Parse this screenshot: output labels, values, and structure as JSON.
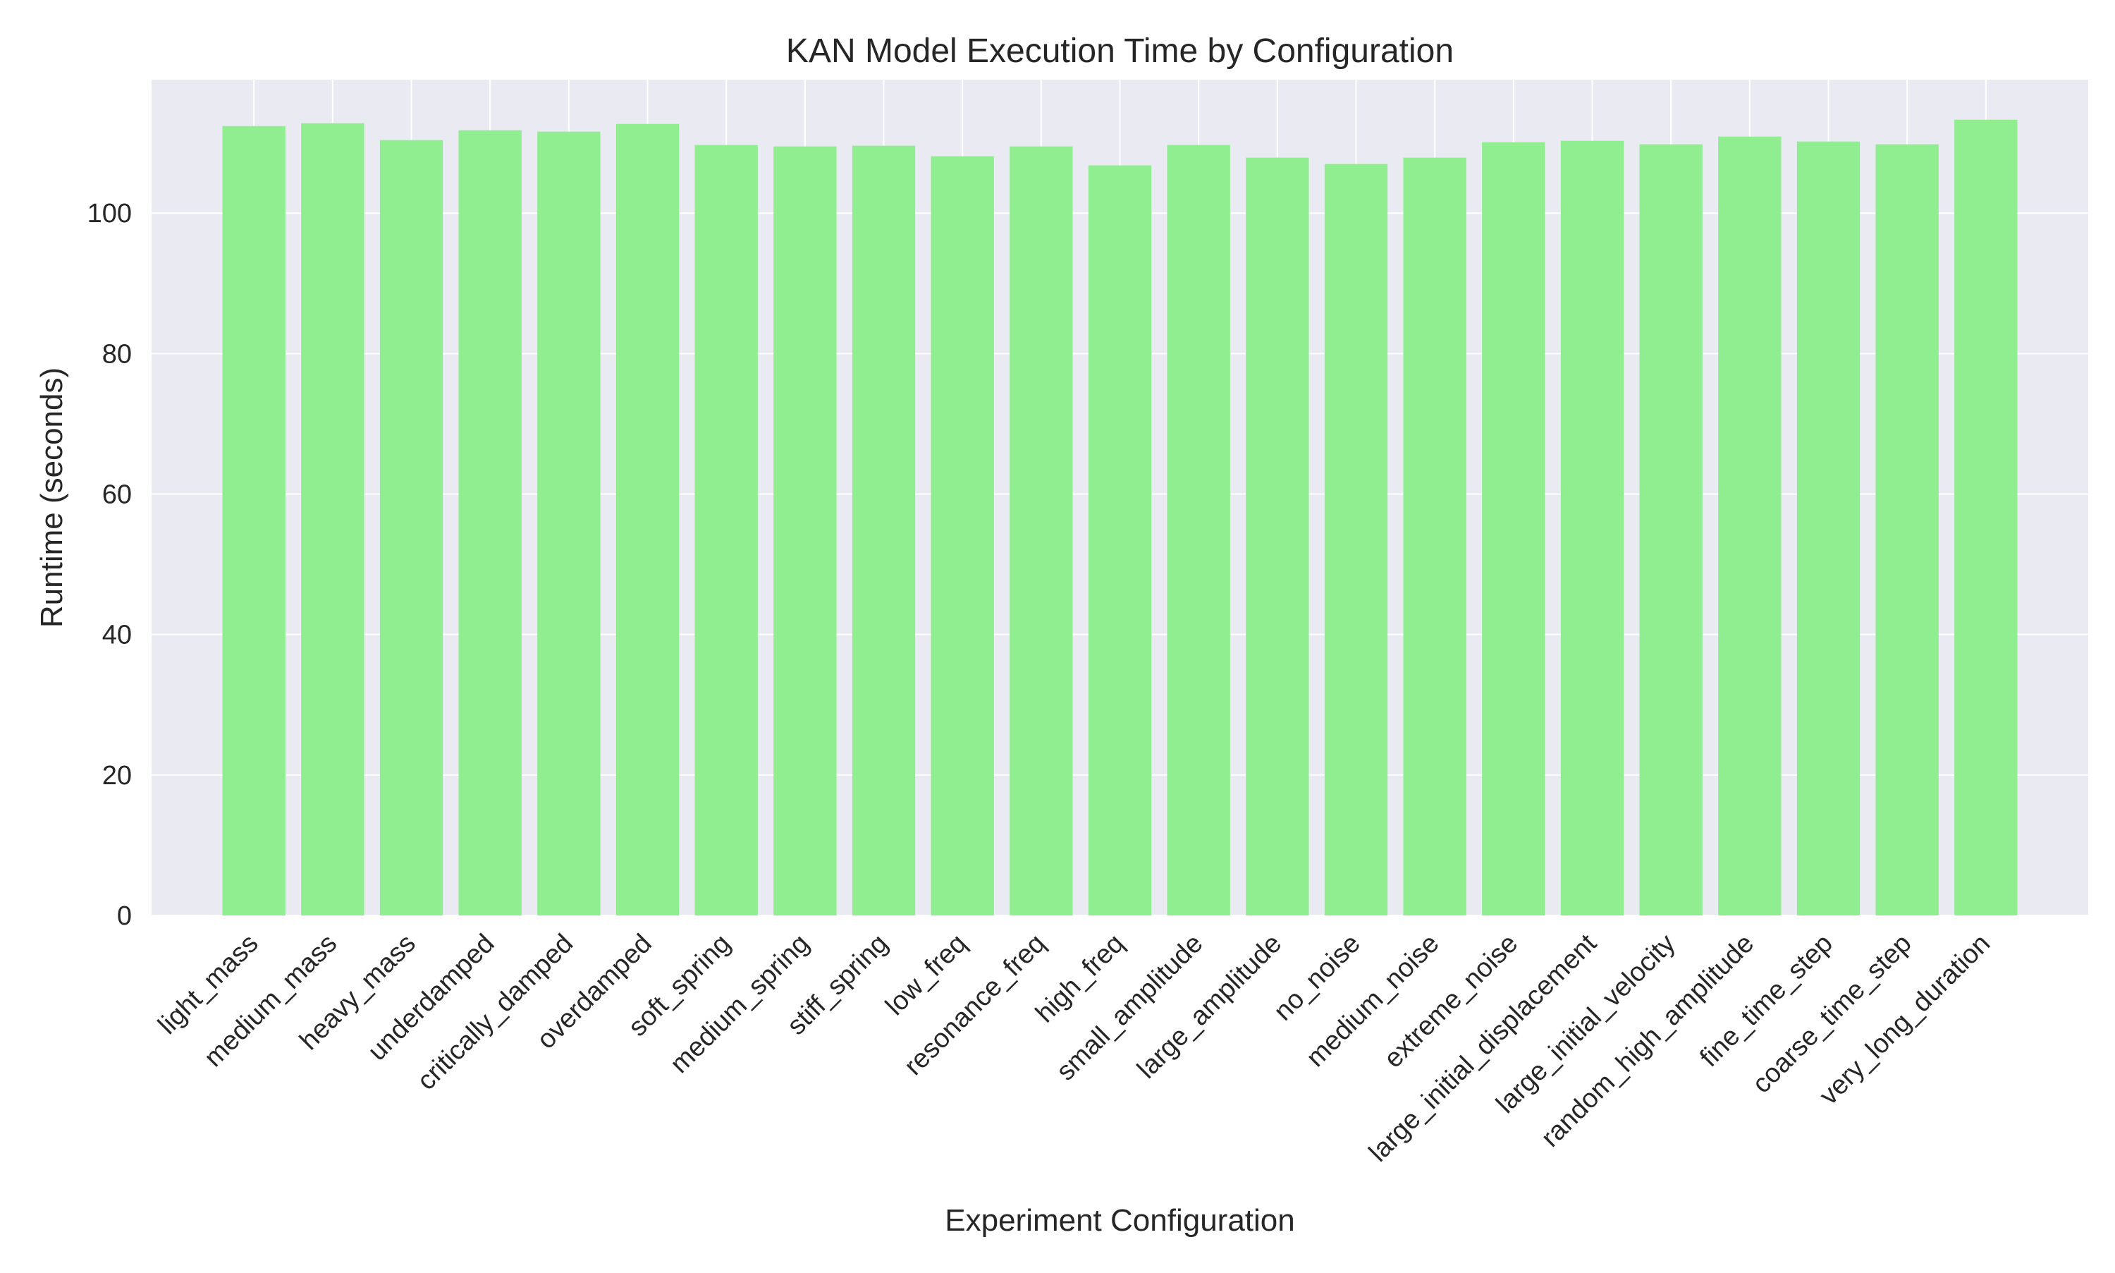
{
  "chart_data": {
    "type": "bar",
    "title": "KAN Model Execution Time by Configuration",
    "xlabel": "Experiment Configuration",
    "ylabel": "Runtime (seconds)",
    "ylim": [
      0,
      119
    ],
    "yticks": [
      0,
      20,
      40,
      60,
      80,
      100
    ],
    "grid": true,
    "colors": {
      "bar": "#90ee90",
      "plot_bg": "#eaeaf2",
      "grid": "#ffffff",
      "text": "#262626"
    },
    "categories": [
      "light_mass",
      "medium_mass",
      "heavy_mass",
      "underdamped",
      "critically_damped",
      "overdamped",
      "soft_spring",
      "medium_spring",
      "stiff_spring",
      "low_freq",
      "resonance_freq",
      "high_freq",
      "small_amplitude",
      "large_amplitude",
      "no_noise",
      "medium_noise",
      "extreme_noise",
      "large_initial_displacement",
      "large_initial_velocity",
      "random_high_amplitude",
      "fine_time_step",
      "coarse_time_step",
      "very_long_duration"
    ],
    "values": [
      112.4,
      112.8,
      110.4,
      111.8,
      111.6,
      112.7,
      109.7,
      109.5,
      109.6,
      108.1,
      109.5,
      106.8,
      109.7,
      107.9,
      107.0,
      107.9,
      110.1,
      110.3,
      109.8,
      110.9,
      110.2,
      109.8,
      113.3
    ]
  }
}
